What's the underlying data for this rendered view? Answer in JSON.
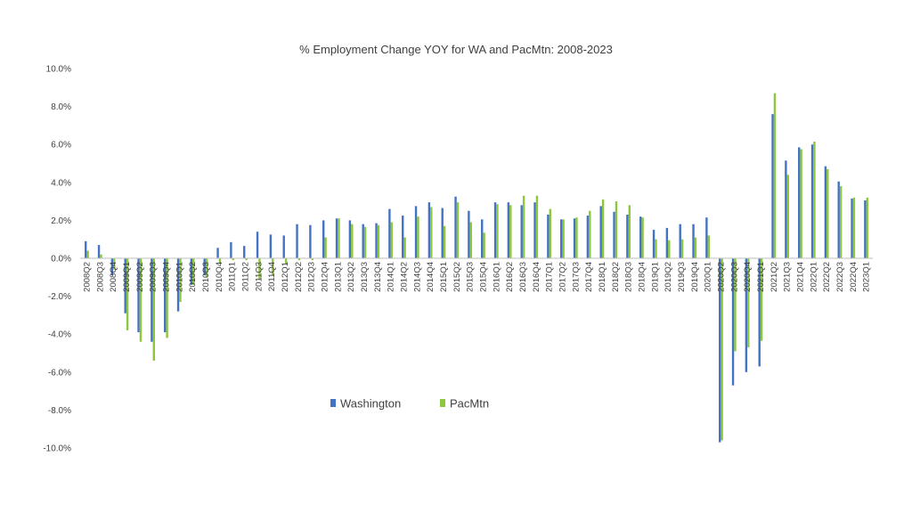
{
  "chart_data": {
    "type": "bar",
    "title": "% Employment Change YOY for WA and PacMtn: 2008-2023",
    "xlabel": "",
    "ylabel": "",
    "ylim": [
      -10,
      10
    ],
    "yticks": [
      "10.0%",
      "8.0%",
      "6.0%",
      "4.0%",
      "2.0%",
      "0.0%",
      "-2.0%",
      "-4.0%",
      "-6.0%",
      "-8.0%",
      "-10.0%"
    ],
    "grid": false,
    "legend_position": "bottom-center",
    "categories": [
      "2008Q2",
      "2008Q3",
      "2008Q4",
      "2009Q1",
      "2009Q2",
      "2009Q3",
      "2009Q4",
      "2010Q1",
      "2010Q2",
      "2010Q3",
      "2010Q4",
      "2011Q1",
      "2011Q2",
      "2011Q3",
      "2011Q4",
      "2012Q1",
      "2012Q2",
      "2012Q3",
      "2012Q4",
      "2013Q1",
      "2013Q2",
      "2013Q3",
      "2013Q4",
      "2014Q1",
      "2014Q2",
      "2014Q3",
      "2014Q4",
      "2015Q1",
      "2015Q2",
      "2015Q3",
      "2015Q4",
      "2016Q1",
      "2016Q2",
      "2016Q3",
      "2016Q4",
      "2017Q1",
      "2017Q2",
      "2017Q3",
      "2017Q4",
      "2018Q1",
      "2018Q2",
      "2018Q3",
      "2018Q4",
      "2019Q1",
      "2019Q2",
      "2019Q3",
      "2019Q4",
      "2020Q1",
      "2020Q2",
      "2020Q3",
      "2020Q4",
      "2021Q1",
      "2021Q2",
      "2021Q3",
      "2021Q4",
      "2022Q1",
      "2022Q2",
      "2022Q3",
      "2022Q4",
      "2023Q1"
    ],
    "series": [
      {
        "name": "Washington",
        "color": "#4472C4",
        "values": [
          0.9,
          0.7,
          -0.9,
          -2.9,
          -3.9,
          -4.4,
          -3.9,
          -2.8,
          -1.4,
          -0.9,
          0.55,
          0.85,
          0.65,
          1.4,
          1.25,
          1.2,
          1.8,
          1.75,
          2.0,
          2.1,
          2.0,
          1.8,
          1.85,
          2.6,
          2.25,
          2.75,
          2.95,
          2.65,
          3.25,
          2.5,
          2.05,
          2.95,
          2.95,
          2.8,
          2.95,
          2.3,
          2.05,
          2.1,
          2.25,
          2.75,
          2.45,
          2.3,
          2.2,
          1.5,
          1.6,
          1.8,
          1.8,
          2.15,
          -9.7,
          -6.7,
          -6.0,
          -5.7,
          7.6,
          5.15,
          5.85,
          6.0,
          4.85,
          4.05,
          3.15,
          3.05
        ]
      },
      {
        "name": "PacMtn",
        "color": "#8DC63F",
        "values": [
          0.4,
          0.2,
          -0.6,
          -3.8,
          -4.4,
          -5.4,
          -4.2,
          -2.3,
          -1.4,
          -1.0,
          -0.3,
          -0.1,
          -0.1,
          -1.1,
          -0.9,
          -0.3,
          -0.1,
          -0.1,
          1.1,
          2.1,
          1.8,
          1.65,
          1.75,
          1.9,
          1.1,
          2.2,
          2.7,
          1.7,
          2.95,
          1.9,
          1.35,
          2.85,
          2.8,
          3.3,
          3.3,
          2.6,
          2.05,
          2.15,
          2.5,
          3.1,
          3.0,
          2.8,
          2.15,
          1.0,
          0.95,
          1.0,
          1.1,
          1.2,
          -9.6,
          -4.9,
          -4.7,
          -4.35,
          8.7,
          4.4,
          5.75,
          6.15,
          4.7,
          3.8,
          3.2,
          3.2
        ]
      }
    ]
  }
}
